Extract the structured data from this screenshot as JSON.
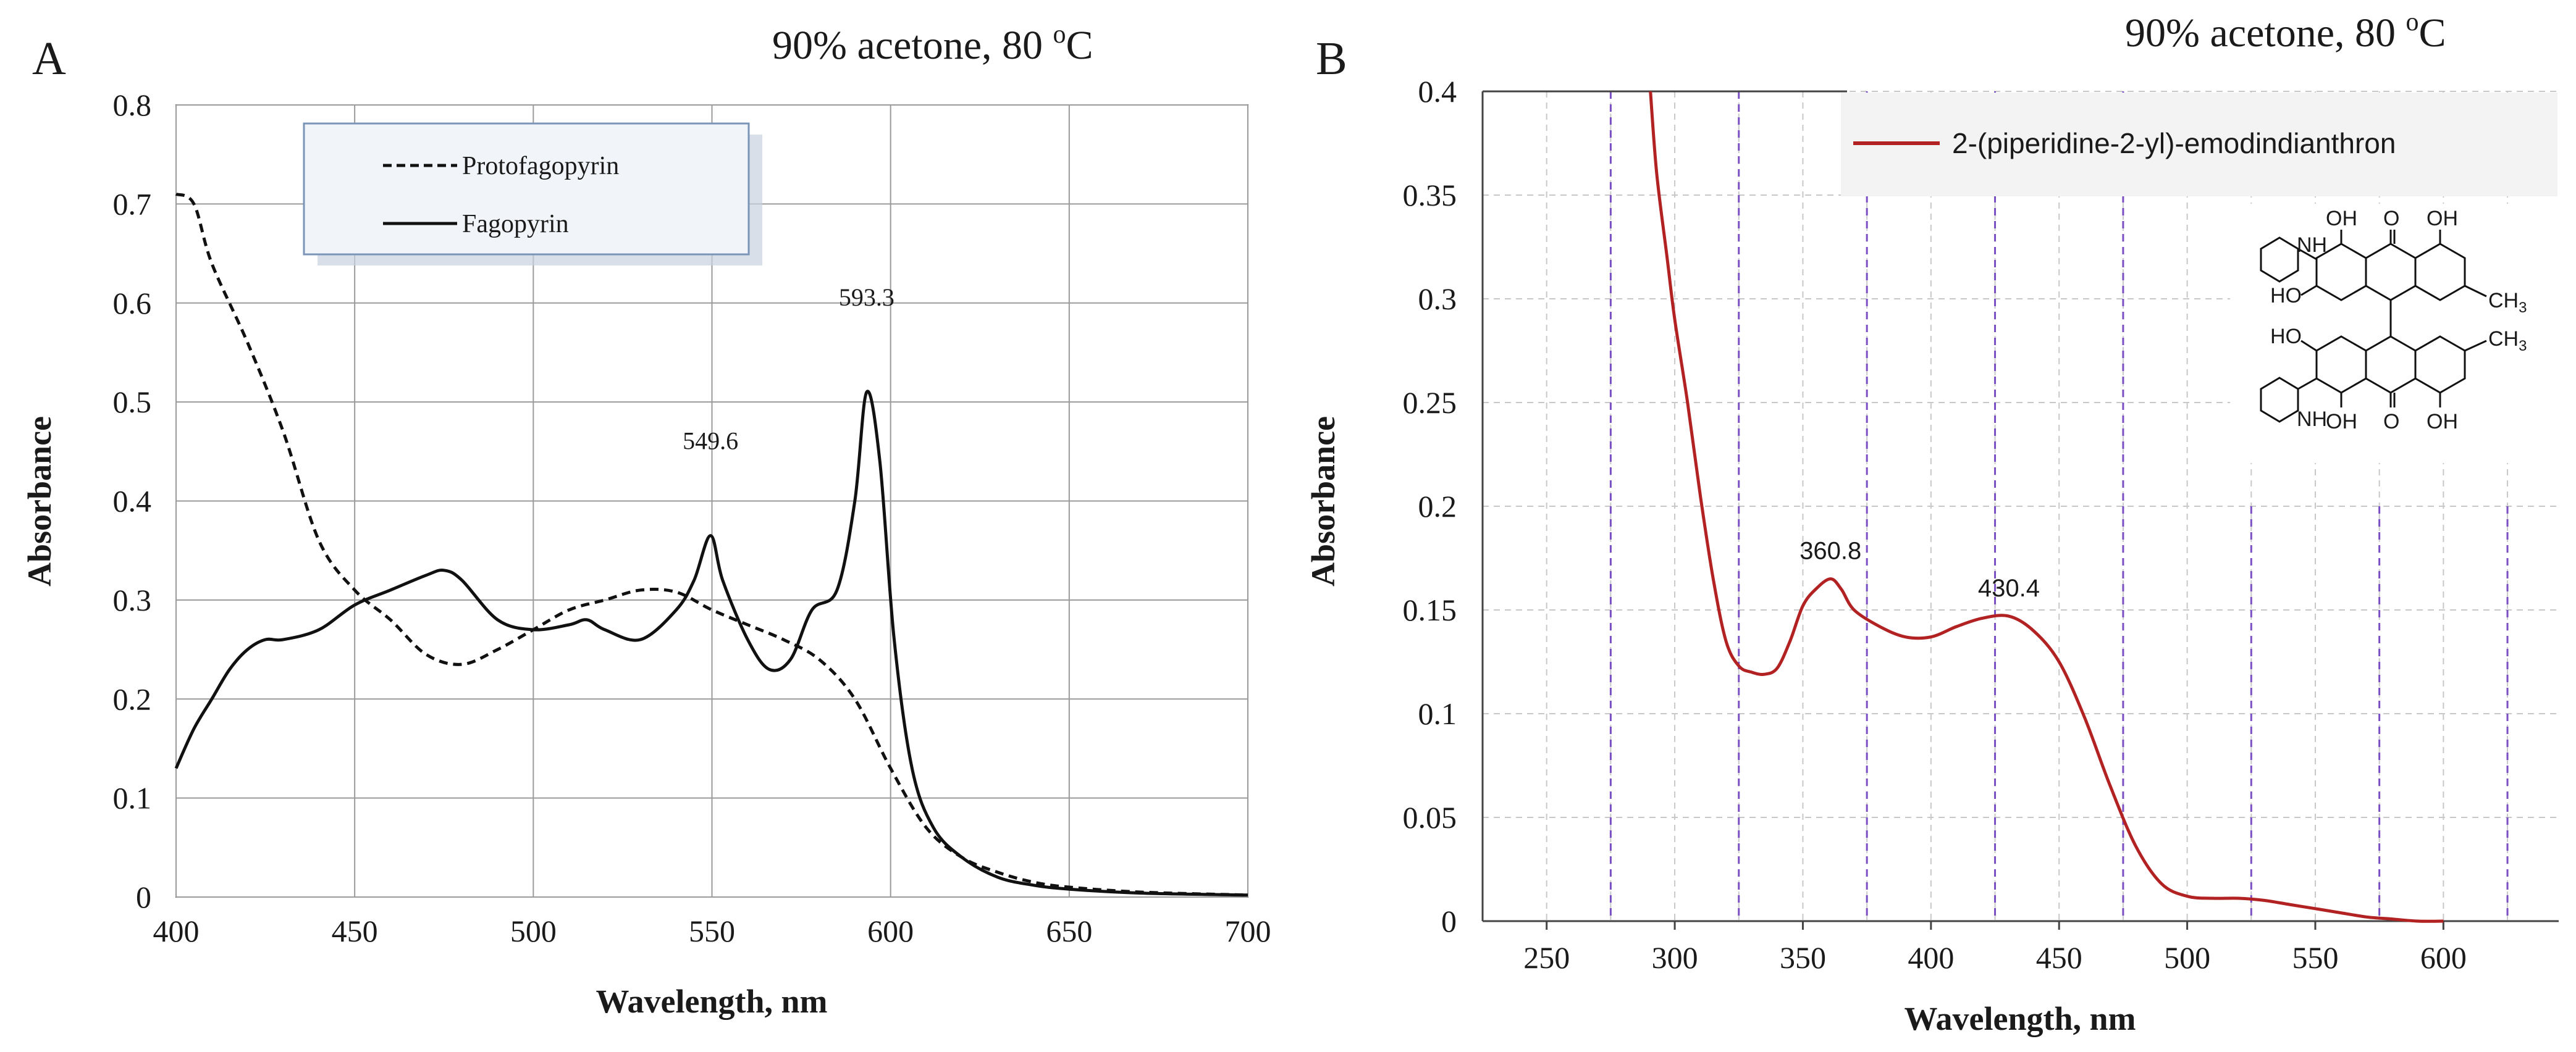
{
  "colors": {
    "panel_a_line": "#111111",
    "panel_a_grid": "#9a9a9a",
    "panel_b_line": "#b22222",
    "panel_b_grid_gray": "#c8c8c8",
    "panel_b_grid_purple": "#7b4fc4",
    "legend_a_bg": "#f1f4f8",
    "legend_a_border": "#7a95b8",
    "legend_b_bg": "#f3f3f3"
  },
  "chart_data": [
    {
      "panel": "A",
      "type": "line",
      "condition": "90% acetone, 80 ",
      "condition_sup": "o",
      "condition_unit": "C",
      "xlabel": "Wavelength, nm",
      "ylabel": "Absorbance",
      "xlim": [
        400,
        700
      ],
      "ylim": [
        0,
        0.8
      ],
      "xticks": [
        "400",
        "450",
        "500",
        "550",
        "600",
        "650",
        "700"
      ],
      "yticks": [
        "0",
        "0.1",
        "0.2",
        "0.3",
        "0.4",
        "0.5",
        "0.6",
        "0.7",
        "0.8"
      ],
      "grid": true,
      "legend_position": "top-left",
      "series": [
        {
          "name": "Protofagopyrin",
          "style": "dashed",
          "x": [
            400,
            405,
            410,
            420,
            430,
            440,
            450,
            460,
            470,
            480,
            490,
            500,
            510,
            520,
            530,
            540,
            550,
            560,
            570,
            580,
            590,
            600,
            610,
            620,
            630,
            640,
            650,
            670,
            700
          ],
          "y": [
            0.71,
            0.7,
            0.64,
            0.56,
            0.47,
            0.36,
            0.31,
            0.28,
            0.245,
            0.235,
            0.25,
            0.27,
            0.29,
            0.3,
            0.31,
            0.308,
            0.29,
            0.275,
            0.26,
            0.24,
            0.2,
            0.13,
            0.07,
            0.04,
            0.025,
            0.015,
            0.01,
            0.005,
            0.002
          ]
        },
        {
          "name": "Fagopyrin",
          "style": "solid",
          "x": [
            400,
            405,
            410,
            415,
            420,
            425,
            430,
            440,
            450,
            460,
            470,
            475,
            480,
            490,
            500,
            510,
            515,
            520,
            530,
            540,
            545,
            549.6,
            553,
            560,
            566,
            572,
            578,
            585,
            590,
            593.3,
            597,
            601,
            606,
            612,
            620,
            630,
            640,
            650,
            670,
            700
          ],
          "y": [
            0.13,
            0.17,
            0.2,
            0.23,
            0.25,
            0.26,
            0.26,
            0.27,
            0.295,
            0.31,
            0.325,
            0.33,
            0.32,
            0.28,
            0.27,
            0.275,
            0.28,
            0.27,
            0.26,
            0.29,
            0.32,
            0.365,
            0.32,
            0.26,
            0.23,
            0.24,
            0.29,
            0.31,
            0.4,
            0.51,
            0.44,
            0.26,
            0.13,
            0.07,
            0.04,
            0.02,
            0.012,
            0.008,
            0.004,
            0.002
          ]
        }
      ],
      "annotations": [
        {
          "label": "549.6",
          "x": 549.6,
          "y": 0.365
        },
        {
          "label": "593.3",
          "x": 593.3,
          "y": 0.51
        }
      ]
    },
    {
      "panel": "B",
      "type": "line",
      "condition": "90% acetone, 80 ",
      "condition_sup": "o",
      "condition_unit": "C",
      "xlabel": "Wavelength, nm",
      "ylabel": "Absorbance",
      "xlim": [
        225,
        645
      ],
      "ylim": [
        0,
        0.4
      ],
      "xticks": [
        "250",
        "300",
        "350",
        "400",
        "450",
        "500",
        "550",
        "600"
      ],
      "yticks": [
        "0",
        "0.05",
        "0.1",
        "0.15",
        "0.2",
        "0.25",
        "0.3",
        "0.35",
        "0.4"
      ],
      "grid": true,
      "legend_position": "top-right",
      "series": [
        {
          "name": "2-(piperidine-2-yl)-emodindianthron",
          "style": "solid",
          "x": [
            290.5,
            293,
            297,
            300,
            305,
            310,
            315,
            320,
            325,
            330,
            335,
            340,
            345,
            350,
            355,
            360.8,
            365,
            370,
            380,
            390,
            400,
            410,
            420,
            430.4,
            440,
            450,
            460,
            470,
            480,
            490,
            500,
            510,
            520,
            530,
            540,
            550,
            560,
            570,
            580,
            590,
            600
          ],
          "y": [
            0.4,
            0.36,
            0.32,
            0.29,
            0.25,
            0.205,
            0.165,
            0.135,
            0.123,
            0.12,
            0.119,
            0.122,
            0.135,
            0.152,
            0.16,
            0.165,
            0.16,
            0.15,
            0.142,
            0.137,
            0.137,
            0.142,
            0.146,
            0.147,
            0.14,
            0.125,
            0.098,
            0.065,
            0.036,
            0.018,
            0.012,
            0.011,
            0.011,
            0.01,
            0.008,
            0.006,
            0.004,
            0.002,
            0.001,
            0.0,
            0.0
          ]
        }
      ],
      "annotations": [
        {
          "label": "360.8",
          "x": 360.8,
          "y": 0.165
        },
        {
          "label": "430.4",
          "x": 430.4,
          "y": 0.147
        }
      ],
      "structure_labels": {
        "nh": "NH",
        "oh": "OH",
        "ho": "HO",
        "o": "O",
        "ch": "CH",
        "three": "3"
      }
    }
  ]
}
